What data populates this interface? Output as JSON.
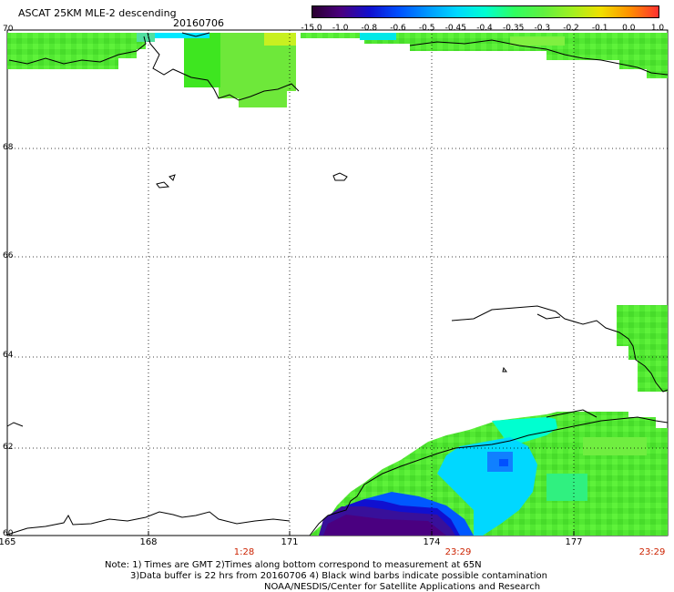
{
  "header": {
    "title": "ASCAT 25KM MLE-2 descending",
    "date": "20160706"
  },
  "colorbar": {
    "labels": [
      "-15.0",
      "-1.0",
      "-0.8",
      "-0.6",
      "-0.5",
      "-0.45",
      "-0.4",
      "-0.35",
      "-0.3",
      "-0.2",
      "-0.1",
      "0.0",
      "1.0"
    ],
    "colors": [
      "#2a0030",
      "#4a0080",
      "#1010d0",
      "#0050ff",
      "#0098ff",
      "#00d8ff",
      "#00ffd0",
      "#30ff60",
      "#60f040",
      "#a0f020",
      "#f0e000",
      "#ff9000",
      "#ff3030"
    ]
  },
  "axes": {
    "lon_labels": [
      "165",
      "168",
      "171",
      "174",
      "177"
    ],
    "lat_labels": [
      "70",
      "68",
      "66",
      "64",
      "62",
      "60"
    ]
  },
  "times": [
    "1:28",
    "23:29",
    "23:29"
  ],
  "notes": {
    "line1": "Note: 1) Times are GMT 2)Times along bottom correspond to measurement at 65N",
    "line2": "3)Data buffer is 22 hrs from 20160706 4) Black wind barbs indicate possible contamination",
    "line3": "NOAA/NESDIS/Center for Satellite Applications and Research"
  }
}
